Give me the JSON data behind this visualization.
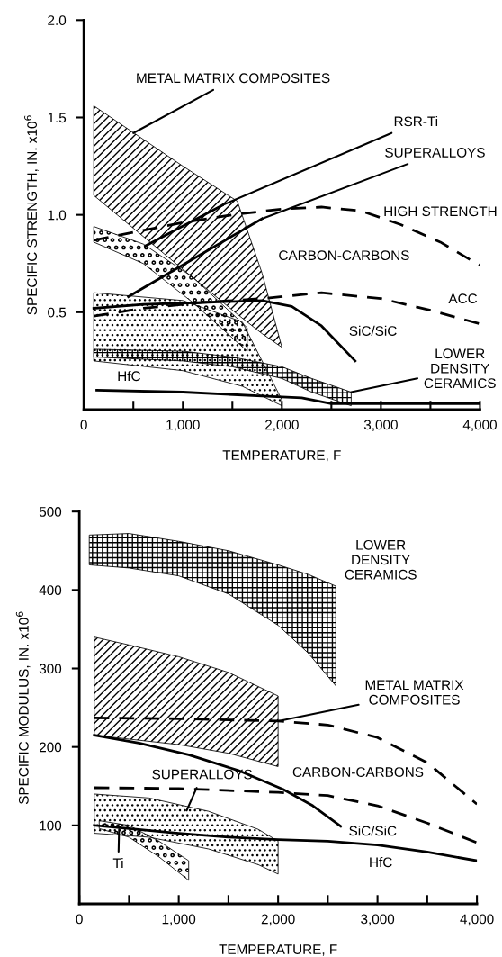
{
  "chart_data": [
    {
      "type": "line",
      "xlabel": "TEMPERATURE, F",
      "ylabel": "SPECIFIC STRENGTH, IN. x10$^{6}$",
      "xlim": [
        0,
        4000
      ],
      "ylim": [
        0,
        2.0
      ],
      "xticks": [
        {
          "value": 0,
          "label": "0"
        },
        {
          "value": 500,
          "label": null
        },
        {
          "value": 1000,
          "label": "1,000"
        },
        {
          "value": 1500,
          "label": null
        },
        {
          "value": 2000,
          "label": "2,000"
        },
        {
          "value": 2500,
          "label": null
        },
        {
          "value": 3000,
          "label": "3,000"
        },
        {
          "value": 3500,
          "label": null
        },
        {
          "value": 4000,
          "label": "4,000"
        }
      ],
      "yticks": [
        {
          "value": 0.5,
          "label": "0.5"
        },
        {
          "value": 1.0,
          "label": "1.0"
        },
        {
          "value": 1.5,
          "label": "1.5"
        },
        {
          "value": 2.0,
          "label": "2.0"
        }
      ],
      "grid": false,
      "legend": false,
      "series": [
        {
          "type": "area",
          "color": "#000000",
          "x": [
            100,
            1000,
            1550,
            1800,
            2000
          ],
          "values": [
            null,
            null,
            null,
            null,
            null
          ],
          "upper": [
            1.56,
            1.25,
            1.07,
            0.7,
            0.32
          ],
          "lower": [
            1.1,
            0.72,
            0.49,
            0.39,
            0.32
          ]
        },
        {
          "type": "area",
          "color": "#000000",
          "x": [
            100,
            1000,
            1600,
            2000
          ],
          "values": [
            null,
            null,
            null,
            null
          ],
          "upper": [
            0.6,
            0.56,
            0.45,
            0.05
          ],
          "lower": [
            0.25,
            0.2,
            0.12,
            0.02
          ]
        },
        {
          "type": "area",
          "color": "#000000",
          "x": [
            100,
            600,
            1100,
            1650
          ],
          "values": [
            null,
            null,
            null,
            null
          ],
          "upper": [
            0.94,
            0.85,
            0.68,
            0.42
          ],
          "lower": [
            0.86,
            0.75,
            0.55,
            0.3
          ]
        },
        {
          "type": "area",
          "color": "#000000",
          "x": [
            100,
            1000,
            1500,
            2000,
            2300,
            2700
          ],
          "values": [
            null,
            null,
            null,
            null,
            null,
            null
          ],
          "upper": [
            0.31,
            0.3,
            0.27,
            0.22,
            0.16,
            0.09
          ],
          "lower": [
            0.27,
            0.25,
            0.22,
            0.16,
            0.09,
            0.02
          ]
        },
        {
          "type": "line",
          "color": "#000000",
          "line_style": "solid",
          "x": [
            620,
            1400
          ],
          "values": [
            0.84,
            1.05
          ]
        },
        {
          "type": "line",
          "color": "#000000",
          "line_style": "solid",
          "x": [
            450,
            1800
          ],
          "values": [
            0.58,
            0.98
          ]
        },
        {
          "type": "line",
          "color": "#000000",
          "line_style": "dashed",
          "x": [
            100,
            600,
            1000,
            1500,
            2000,
            2400,
            2800,
            3200,
            3600,
            4000
          ],
          "values": [
            0.87,
            0.92,
            0.96,
            1.0,
            1.03,
            1.04,
            1.02,
            0.95,
            0.86,
            0.74
          ]
        },
        {
          "type": "line",
          "color": "#000000",
          "line_style": "dashed",
          "x": [
            100,
            600,
            1200,
            1800,
            2400,
            3000,
            3500,
            4000
          ],
          "values": [
            0.48,
            0.52,
            0.55,
            0.57,
            0.6,
            0.57,
            0.51,
            0.44
          ]
        },
        {
          "type": "line",
          "color": "#000000",
          "line_style": "solid",
          "x": [
            100,
            600,
            1200,
            1800,
            2100,
            2400,
            2740
          ],
          "values": [
            0.52,
            0.54,
            0.55,
            0.56,
            0.53,
            0.43,
            0.25
          ]
        },
        {
          "type": "line",
          "color": "#000000",
          "line_style": "solid",
          "x": [
            130,
            1000,
            1800,
            2200,
            2500,
            2800,
            4000
          ],
          "values": [
            0.1,
            0.09,
            0.07,
            0.06,
            0.03,
            0.03,
            0.03
          ]
        }
      ],
      "annotations": [
        {
          "text": "METAL MATRIX COMPOSITES",
          "x": 500,
          "y": 1.42
        },
        {
          "text": "RSR-Ti",
          "x": 1400,
          "y": 1.05
        },
        {
          "text": "SUPERALLOYS",
          "x": 1800,
          "y": 0.98
        },
        "HIGH STRENGTH",
        "CARBON-CARBONS",
        "ACC",
        "SiC/SiC",
        {
          "text": "LOWER\nDENSITY\nCERAMICS",
          "x": 2700,
          "y": 0.09
        },
        "HfC"
      ]
    },
    {
      "type": "line",
      "xlabel": "TEMPERATURE, F",
      "ylabel": "SPECIFIC MODULUS, IN. x10$^{6}$",
      "xlim": [
        0,
        4000
      ],
      "ylim": [
        0,
        500
      ],
      "xticks": [
        {
          "value": 0,
          "label": "0"
        },
        {
          "value": 500,
          "label": null
        },
        {
          "value": 1000,
          "label": "1,000"
        },
        {
          "value": 1500,
          "label": null
        },
        {
          "value": 2000,
          "label": "2,000"
        },
        {
          "value": 2500,
          "label": null
        },
        {
          "value": 3000,
          "label": "3,000"
        },
        {
          "value": 3500,
          "label": null
        },
        {
          "value": 4000,
          "label": "4,000"
        }
      ],
      "yticks": [
        100,
        200,
        300,
        400,
        500
      ],
      "grid": false,
      "legend": false,
      "series": [
        {
          "type": "area",
          "color": "#000000",
          "x": [
            150,
            500,
            1000,
            1500,
            2000
          ],
          "values": [
            null,
            null,
            null,
            null,
            null
          ],
          "upper": [
            340,
            330,
            315,
            295,
            265
          ],
          "lower": [
            215,
            210,
            203,
            192,
            175
          ]
        },
        {
          "type": "area",
          "color": "#000000",
          "x": [
            150,
            700,
            1300,
            1800,
            2000
          ],
          "values": [
            null,
            null,
            null,
            null,
            null
          ],
          "upper": [
            140,
            135,
            118,
            95,
            80
          ],
          "lower": [
            90,
            85,
            70,
            50,
            38
          ]
        },
        {
          "type": "area",
          "color": "#000000",
          "x": [
            200,
            500,
            800,
            1100
          ],
          "values": [
            null,
            null,
            null,
            null
          ],
          "upper": [
            106,
            100,
            80,
            55
          ],
          "lower": [
            96,
            85,
            60,
            30
          ]
        },
        {
          "type": "area",
          "color": "#000000",
          "x": [
            100,
            500,
            1000,
            1500,
            2000,
            2300,
            2580
          ],
          "values": [
            null,
            null,
            null,
            null,
            null,
            null,
            null
          ],
          "upper": [
            470,
            472,
            462,
            450,
            432,
            420,
            405
          ],
          "lower": [
            432,
            428,
            418,
            395,
            355,
            320,
            278
          ]
        },
        {
          "type": "line",
          "color": "#000000",
          "line_style": "dashed",
          "x": [
            150,
            1000,
            2000,
            2500,
            3000,
            3500,
            4000
          ],
          "values": [
            237,
            236,
            233,
            228,
            212,
            180,
            127
          ]
        },
        {
          "type": "line",
          "color": "#000000",
          "line_style": "dashed",
          "x": [
            150,
            1000,
            2000,
            2500,
            3000,
            3500,
            4000
          ],
          "values": [
            148,
            147,
            142,
            138,
            125,
            103,
            78
          ]
        },
        {
          "type": "line",
          "color": "#000000",
          "line_style": "solid",
          "x": [
            150,
            600,
            1100,
            1600,
            2050,
            2350,
            2630
          ],
          "values": [
            215,
            205,
            190,
            170,
            146,
            125,
            99
          ]
        },
        {
          "type": "line",
          "color": "#000000",
          "line_style": "solid",
          "x": [
            150,
            500,
            1000,
            1500,
            2000,
            2500,
            3000,
            3500,
            4000
          ],
          "values": [
            100,
            96,
            90,
            85,
            82,
            80,
            75,
            66,
            55
          ]
        }
      ],
      "annotations": [
        "LOWER\nDENSITY\nCERAMICS",
        {
          "text": "METAL MATRIX\nCOMPOSITES",
          "x": 2000,
          "y": 233
        },
        "CARBON-CARBONS",
        {
          "text": "SUPERALLOYS",
          "x": 1080,
          "y": 119
        },
        "SiC/SiC",
        "HfC",
        {
          "text": "Ti",
          "x": 400,
          "y": 95
        }
      ]
    }
  ]
}
